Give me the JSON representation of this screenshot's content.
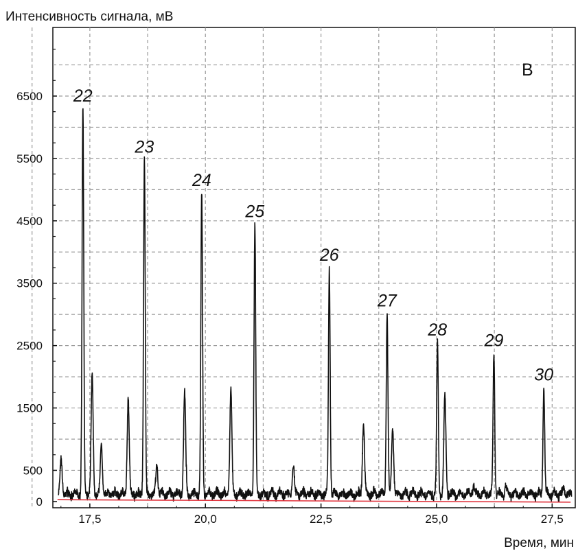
{
  "chart_data": {
    "type": "line",
    "ylabel": "Интенсивность сигнала, мВ",
    "xlabel": "Время, мин",
    "panel_label": "В",
    "xlim": [
      16.7,
      28.0
    ],
    "ylim": [
      -100,
      7600
    ],
    "x_ticks": [
      17.5,
      20.0,
      22.5,
      25.0,
      27.5
    ],
    "x_tick_labels": [
      "17,5",
      "20,0",
      "22,5",
      "25,0",
      "27,5"
    ],
    "y_ticks": [
      0,
      500,
      1500,
      2500,
      3500,
      4500,
      5500,
      6500
    ],
    "y_tick_labels": [
      "0",
      "500",
      "1500",
      "2500",
      "3500",
      "4500",
      "5500",
      "6500"
    ],
    "grid": true,
    "line_color": "#111111",
    "baseline_color": "#e0303a",
    "baseline": {
      "x": [
        16.8,
        27.9
      ],
      "y": [
        30,
        -10
      ]
    },
    "signal": {
      "base": 120,
      "peaks": [
        {
          "label": "22",
          "x": 17.35,
          "y": 6300
        },
        {
          "label": "23",
          "x": 18.68,
          "y": 5480
        },
        {
          "label": "24",
          "x": 19.92,
          "y": 4950
        },
        {
          "label": "25",
          "x": 21.07,
          "y": 4450
        },
        {
          "label": "26",
          "x": 22.68,
          "y": 3750
        },
        {
          "label": "27",
          "x": 23.93,
          "y": 3020
        },
        {
          "label": "28",
          "x": 25.02,
          "y": 2550
        },
        {
          "label": "29",
          "x": 26.24,
          "y": 2380
        },
        {
          "label": "30",
          "x": 27.32,
          "y": 1830
        }
      ],
      "minor_peaks": [
        {
          "x": 16.88,
          "y": 650
        },
        {
          "x": 17.55,
          "y": 1980
        },
        {
          "x": 17.75,
          "y": 900
        },
        {
          "x": 18.33,
          "y": 1650
        },
        {
          "x": 18.95,
          "y": 600
        },
        {
          "x": 19.55,
          "y": 1730
        },
        {
          "x": 20.55,
          "y": 1780
        },
        {
          "x": 21.9,
          "y": 600
        },
        {
          "x": 23.42,
          "y": 1270
        },
        {
          "x": 24.05,
          "y": 1220
        },
        {
          "x": 25.18,
          "y": 1680
        },
        {
          "x": 25.8,
          "y": 250
        },
        {
          "x": 26.5,
          "y": 250
        },
        {
          "x": 27.75,
          "y": 200
        }
      ]
    }
  }
}
